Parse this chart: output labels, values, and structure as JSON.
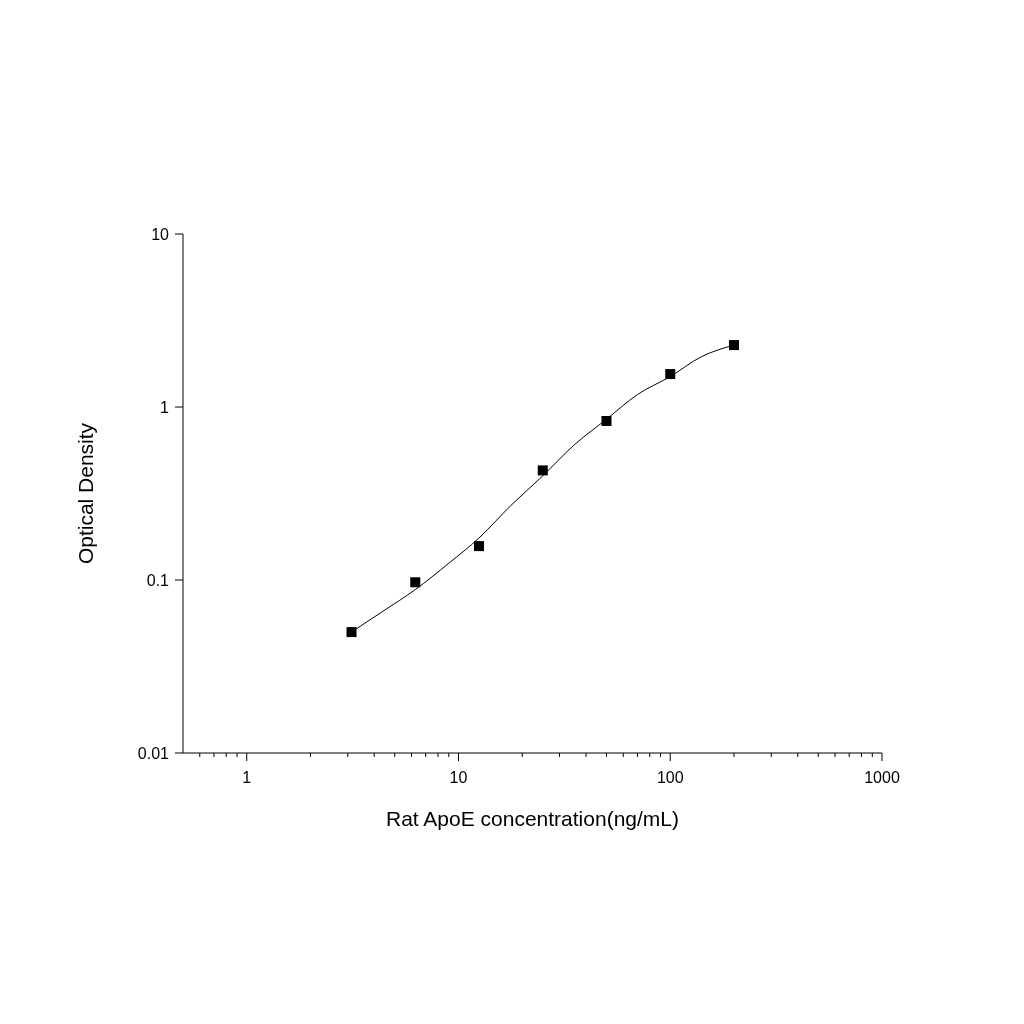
{
  "chart_data": {
    "type": "scatter",
    "xlabel": "Rat ApoE concentration(ng/mL)",
    "ylabel": "Optical Density",
    "log": "xy",
    "grid": false,
    "xlim": [
      0.5,
      1000
    ],
    "ylim": [
      0.01,
      10
    ],
    "xticks": [
      {
        "value": 0.6,
        "label": null
      },
      {
        "value": 0.7,
        "label": null
      },
      {
        "value": 0.8,
        "label": null
      },
      {
        "value": 0.9,
        "label": null
      },
      1,
      {
        "value": 2,
        "label": null
      },
      {
        "value": 3,
        "label": null
      },
      {
        "value": 4,
        "label": null
      },
      {
        "value": 5,
        "label": null
      },
      {
        "value": 6,
        "label": null
      },
      {
        "value": 7,
        "label": null
      },
      {
        "value": 8,
        "label": null
      },
      {
        "value": 9,
        "label": null
      },
      10,
      {
        "value": 20,
        "label": null
      },
      {
        "value": 30,
        "label": null
      },
      {
        "value": 40,
        "label": null
      },
      {
        "value": 50,
        "label": null
      },
      {
        "value": 60,
        "label": null
      },
      {
        "value": 70,
        "label": null
      },
      {
        "value": 80,
        "label": null
      },
      {
        "value": 90,
        "label": null
      },
      100,
      {
        "value": 200,
        "label": null
      },
      {
        "value": 300,
        "label": null
      },
      {
        "value": 400,
        "label": null
      },
      {
        "value": 500,
        "label": null
      },
      {
        "value": 600,
        "label": null
      },
      {
        "value": 700,
        "label": null
      },
      {
        "value": 800,
        "label": null
      },
      {
        "value": 900,
        "label": null
      },
      1000
    ],
    "yticks": [
      0.01,
      0.1,
      1,
      10
    ],
    "series": [
      {
        "color": "#000000",
        "marker": "square",
        "x": [
          3.125,
          6.25,
          12.5,
          25,
          50,
          100,
          200
        ],
        "values": [
          0.05,
          0.097,
          0.157,
          0.43,
          0.83,
          1.55,
          2.28
        ]
      },
      {
        "type": "line",
        "color": "#000000",
        "marker": "none",
        "line_style": "solid",
        "x": [
          3.125,
          4.4,
          6.25,
          9,
          12.5,
          17.7,
          25,
          35,
          50,
          70,
          100,
          140,
          200
        ],
        "values": [
          0.05,
          0.066,
          0.088,
          0.125,
          0.175,
          0.27,
          0.4,
          0.6,
          0.85,
          1.18,
          1.5,
          1.95,
          2.28
        ]
      }
    ]
  }
}
